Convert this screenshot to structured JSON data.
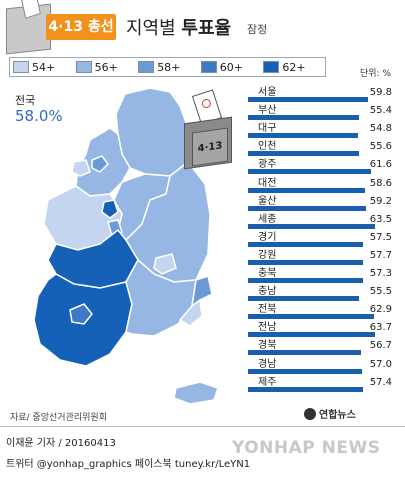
{
  "header": {
    "badge": "4·13 총선",
    "title_plain": "지역별",
    "title_bold": "투표율",
    "subtitle": "잠정"
  },
  "legend": [
    {
      "label": "54+",
      "color": "#c3d5ef"
    },
    {
      "label": "56+",
      "color": "#96b7e4"
    },
    {
      "label": "58+",
      "color": "#6c9ad7"
    },
    {
      "label": "60+",
      "color": "#3d79c7"
    },
    {
      "label": "62+",
      "color": "#1561b8"
    }
  ],
  "unit": "단위: %",
  "national": {
    "label": "전국",
    "value": "58.0%"
  },
  "ballot_label": "4·13",
  "chart_data": {
    "type": "bar",
    "categories": [
      "서울",
      "부산",
      "대구",
      "인천",
      "광주",
      "대전",
      "울산",
      "세종",
      "경기",
      "강원",
      "충북",
      "충남",
      "전북",
      "전남",
      "경북",
      "경남",
      "제주"
    ],
    "values": [
      59.8,
      55.4,
      54.8,
      55.6,
      61.6,
      58.6,
      59.2,
      63.5,
      57.5,
      57.7,
      57.3,
      55.5,
      62.9,
      63.7,
      56.7,
      57.0,
      57.4
    ],
    "value_labels": [
      "59.8",
      "55.4",
      "54.8",
      "55.6",
      "61.6",
      "58.6",
      "59.2",
      "63.5",
      "57.5",
      "57.7",
      "57.3",
      "55.5",
      "62.9",
      "63.7",
      "56.7",
      "57.0",
      "57.4"
    ],
    "bar_color": "#1a5fae",
    "xlim": [
      0,
      70
    ]
  },
  "map_colors": {
    "gangwon": "#96b7e4",
    "gyeonggi": "#96b7e4",
    "chungbuk": "#96b7e4",
    "chungnam": "#c3d5ef",
    "sejong": "#1561b8",
    "daejeon": "#6c9ad7",
    "jeonbuk": "#1561b8",
    "jeonnam": "#1561b8",
    "gwangju": "#3d79c7",
    "gyeongbuk": "#96b7e4",
    "daegu": "#c3d5ef",
    "gyeongnam": "#96b7e4",
    "ulsan": "#6c9ad7",
    "busan": "#c3d5ef",
    "seoul": "#6c9ad7",
    "incheon": "#c3d5ef",
    "jeju": "#96b7e4",
    "border": "#ffffff"
  },
  "source": "자료/ 중앙선거관리위원회",
  "logo": "연합뉴스",
  "credits": {
    "reporter": "이재윤 기자 / 20160413",
    "social": "트위터 @yonhap_graphics  페이스북 tuney.kr/LeYN1"
  },
  "watermark": "YONHAP NEWS"
}
